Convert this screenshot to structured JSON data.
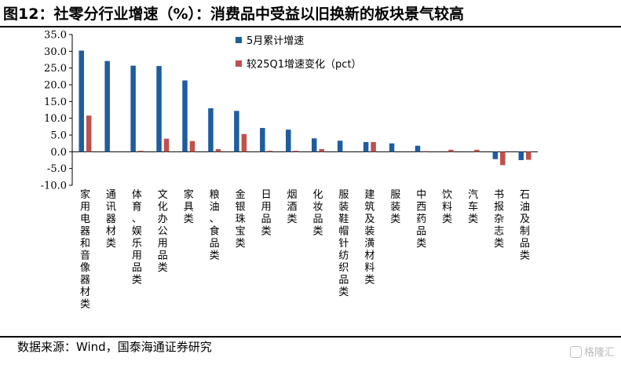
{
  "header": {
    "title": "图12：社零分行业增速（%）：消费品中受益以旧换新的板块景气较高"
  },
  "footer": {
    "source": "数据来源：Wind，国泰海通证券研究",
    "watermark": "格隆汇"
  },
  "colors": {
    "series1": "#1f5d9e",
    "series2": "#c0504d",
    "axis": "#000000"
  },
  "chart_data": {
    "type": "bar",
    "title": "社零分行业增速（%）",
    "xlabel": "",
    "ylabel": "",
    "ylim": [
      -10,
      35
    ],
    "yticks": [
      "35.0",
      "30.0",
      "25.0",
      "20.0",
      "15.0",
      "10.0",
      "5.0",
      "0.0",
      "-5.0",
      "-10.0"
    ],
    "ytick_values": [
      35,
      30,
      25,
      20,
      15,
      10,
      5,
      0,
      -5,
      -10
    ],
    "legend_position": "top-center",
    "categories": [
      "家用电器和音像器材类",
      "通讯器材类",
      "体育、娱乐用品类",
      "文化办公用品类",
      "家具类",
      "粮油、食品类",
      "金银珠宝类",
      "日用品类",
      "烟酒类",
      "化妆品类",
      "服装鞋帽针纺织品类",
      "建筑及装潢材料类",
      "服装类",
      "中西药品类",
      "饮料类",
      "汽车类",
      "书报杂志类",
      "石油及制品类"
    ],
    "series": [
      {
        "name": "5月累计增速",
        "values": [
          30.2,
          27.1,
          25.7,
          25.6,
          21.3,
          13.0,
          12.2,
          7.1,
          6.6,
          4.0,
          3.3,
          2.9,
          2.5,
          1.8,
          0.0,
          0.0,
          -2.2,
          -2.5
        ]
      },
      {
        "name": "较25Q1增速变化（pct）",
        "values": [
          10.8,
          0.0,
          0.3,
          3.9,
          3.2,
          0.8,
          5.3,
          0.3,
          0.3,
          0.8,
          0.0,
          2.9,
          0.0,
          0.2,
          0.6,
          0.6,
          -4.0,
          -2.4
        ]
      }
    ]
  }
}
